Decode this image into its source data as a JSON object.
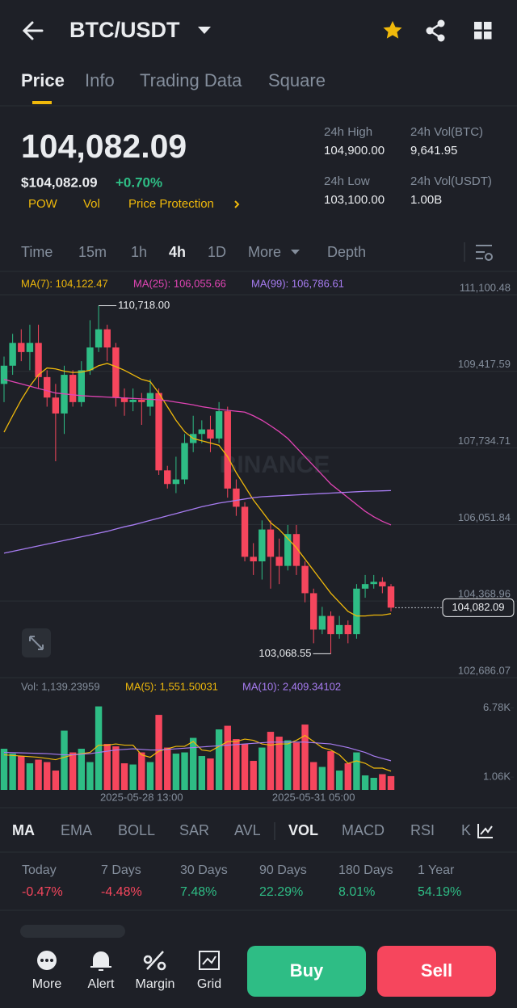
{
  "header": {
    "title": "BTC/USDT"
  },
  "tabs": {
    "items": [
      "Price",
      "Info",
      "Trading Data",
      "Square"
    ],
    "active": 0
  },
  "ticker": {
    "price": "104,082.09",
    "price_usd": "$104,082.09",
    "change": "+0.70%",
    "tags": [
      "POW",
      "Vol",
      "Price Protection"
    ]
  },
  "stats": [
    {
      "label": "24h High",
      "value": "104,900.00"
    },
    {
      "label": "24h Vol(BTC)",
      "value": "9,641.95"
    },
    {
      "label": "24h Low",
      "value": "103,100.00"
    },
    {
      "label": "24h Vol(USDT)",
      "value": "1.00B"
    }
  ],
  "intervals": {
    "items": [
      "Time",
      "15m",
      "1h",
      "4h",
      "1D",
      "More",
      "Depth"
    ],
    "active": 3
  },
  "chart_data": [
    {
      "type": "candlestick",
      "up_color": "#2ebd85",
      "down_color": "#f6465d",
      "open": [
        109000,
        109400,
        109900,
        109700,
        109900,
        109150,
        108700,
        108350,
        109200,
        108600,
        109300,
        109800,
        110200,
        109800,
        108700,
        108600,
        108650,
        108500,
        108800,
        107100,
        106800,
        106900,
        107700,
        107900,
        108000,
        107800,
        108400,
        106700,
        106300,
        105200,
        105100,
        105800,
        105200,
        105000,
        105700,
        105000,
        104400,
        103600,
        103900,
        103500,
        103700,
        103500,
        104500,
        104600,
        104650,
        104550
      ],
      "high": [
        109600,
        110100,
        110200,
        110300,
        110300,
        109300,
        109000,
        109400,
        109300,
        109500,
        110400,
        110718,
        110300,
        109900,
        108900,
        108900,
        108800,
        109100,
        108900,
        107200,
        107400,
        107900,
        108300,
        108200,
        108300,
        108600,
        108500,
        106900,
        106400,
        105500,
        106000,
        106000,
        105600,
        105900,
        105900,
        105100,
        104500,
        104100,
        104000,
        103900,
        103800,
        104600,
        104800,
        104800,
        104750,
        104600
      ],
      "low": [
        108600,
        109200,
        109500,
        109300,
        108900,
        108500,
        107300,
        107900,
        108500,
        108500,
        109200,
        109700,
        109500,
        108500,
        108300,
        108400,
        108100,
        108300,
        107000,
        106700,
        106600,
        106800,
        107500,
        107700,
        107500,
        107700,
        106500,
        106100,
        105100,
        104800,
        104700,
        104500,
        104600,
        104900,
        104800,
        104200,
        103300,
        103500,
        103068.55,
        103400,
        103300,
        103400,
        104300,
        104500,
        104400,
        104000
      ],
      "close": [
        109400,
        109900,
        109700,
        109900,
        109150,
        108700,
        108350,
        109200,
        108600,
        109300,
        109800,
        110200,
        109800,
        108700,
        108600,
        108650,
        108600,
        108800,
        107100,
        106800,
        106900,
        107700,
        107900,
        108000,
        107800,
        108400,
        106700,
        106300,
        105200,
        105100,
        105800,
        105200,
        105000,
        105700,
        105000,
        104400,
        103600,
        103900,
        103500,
        103700,
        103500,
        104500,
        104600,
        104650,
        104550,
        104082.09
      ],
      "ylim": [
        102526,
        111402
      ],
      "yticks": [
        {
          "value": 111100.48,
          "label": "111,100.48"
        },
        {
          "value": 109417.59,
          "label": "109,417.59"
        },
        {
          "value": 107734.71,
          "label": "107,734.71"
        },
        {
          "value": 106051.84,
          "label": "106,051.84"
        },
        {
          "value": 104368.96,
          "label": "104,368.96"
        },
        {
          "value": 102686.07,
          "label": "102,686.07"
        }
      ],
      "grid": true,
      "series": [
        {
          "name": "MA(7): 104,122.47",
          "color": "#f0b90b",
          "values": [
            107940,
            108300,
            108650,
            108950,
            109200,
            109350,
            109330,
            109280,
            109250,
            109260,
            109300,
            109400,
            109450,
            109380,
            109300,
            109200,
            109100,
            109050,
            108800,
            108500,
            108200,
            107950,
            107800,
            107750,
            107700,
            107650,
            107400,
            107050,
            106750,
            106450,
            106200,
            105950,
            105800,
            105600,
            105400,
            105150,
            104900,
            104650,
            104400,
            104200,
            104000,
            103900,
            103900,
            103920,
            103920,
            103950
          ]
        },
        {
          "name": "MA(25): 106,055.66",
          "color": "#e044b4",
          "values": [
            109100,
            109050,
            109000,
            108950,
            108900,
            108850,
            108800,
            108780,
            108760,
            108740,
            108730,
            108720,
            108710,
            108700,
            108690,
            108680,
            108670,
            108660,
            108650,
            108630,
            108600,
            108570,
            108540,
            108500,
            108470,
            108440,
            108420,
            108400,
            108380,
            108300,
            108200,
            108080,
            107950,
            107800,
            107600,
            107400,
            107200,
            107000,
            106800,
            106650,
            106500,
            106350,
            106200,
            106080,
            105980,
            105900
          ]
        },
        {
          "name": "MA(99): 106,786.61",
          "color": "#a77cf1",
          "values": [
            105280,
            105320,
            105360,
            105400,
            105440,
            105480,
            105520,
            105560,
            105600,
            105640,
            105680,
            105720,
            105760,
            105810,
            105860,
            105900,
            105950,
            106000,
            106050,
            106100,
            106150,
            106200,
            106250,
            106300,
            106340,
            106380,
            106410,
            106440,
            106470,
            106500,
            106520,
            106530,
            106540,
            106550,
            106560,
            106570,
            106580,
            106590,
            106600,
            106610,
            106620,
            106630,
            106640,
            106645,
            106650,
            106655
          ]
        }
      ],
      "annotations": [
        {
          "value": 110718,
          "label": "110,718.00"
        },
        {
          "value": 103068.55,
          "label": "103,068.55"
        }
      ],
      "last_price": {
        "value": 104082.09,
        "label": "104,082.09"
      },
      "watermark": "BINANCE"
    },
    {
      "type": "bar",
      "label": "Vol: 1,139.23959",
      "x": [
        null,
        null,
        null,
        null,
        null,
        null,
        null,
        null,
        null,
        null,
        null,
        null,
        null,
        null,
        null,
        null,
        "2025-05-28 13:00",
        null,
        null,
        null,
        null,
        null,
        null,
        null,
        null,
        null,
        null,
        null,
        null,
        null,
        null,
        null,
        null,
        null,
        null,
        null,
        "2025-05-31 05:00",
        null,
        null,
        null,
        null,
        null,
        null,
        null,
        null,
        null
      ],
      "values": [
        3400,
        3000,
        2800,
        2200,
        2500,
        2300,
        1600,
        4900,
        3100,
        3400,
        2300,
        6900,
        3800,
        3600,
        2200,
        2100,
        3100,
        2300,
        6200,
        3500,
        3000,
        3100,
        4300,
        2800,
        2600,
        5000,
        5300,
        4200,
        3800,
        2400,
        3500,
        4800,
        4400,
        4100,
        3900,
        5400,
        2300,
        1900,
        3200,
        1600,
        2200,
        3100,
        1200,
        1000,
        1300,
        1139.23959
      ],
      "ylim": [
        0,
        7540
      ],
      "yticks": [
        {
          "value": 6780,
          "label": "6.78K"
        },
        {
          "value": 1060,
          "label": "1.06K"
        }
      ],
      "series": [
        {
          "name": "MA(5): 1,551.50031",
          "color": "#f0b90b",
          "values": [
            2900,
            2850,
            2800,
            2750,
            2700,
            2600,
            2500,
            2700,
            2900,
            3000,
            3100,
            3700,
            3700,
            3800,
            3700,
            3700,
            2900,
            2700,
            3200,
            3400,
            3600,
            3600,
            4000,
            3300,
            3200,
            3600,
            4000,
            4000,
            4200,
            4100,
            3800,
            3700,
            3800,
            3800,
            4100,
            4500,
            4000,
            3500,
            3300,
            2900,
            2200,
            2400,
            2200,
            1800,
            1800,
            1551.50031
          ]
        },
        {
          "name": "MA(10): 2,409.34102",
          "color": "#a77cf1",
          "values": [
            3100,
            3080,
            3060,
            3040,
            3020,
            3000,
            2950,
            2900,
            2900,
            2950,
            3000,
            3100,
            3200,
            3300,
            3350,
            3400,
            3350,
            3300,
            3300,
            3350,
            3400,
            3450,
            3500,
            3550,
            3600,
            3650,
            3700,
            3750,
            3800,
            3850,
            3900,
            3950,
            3950,
            3950,
            3950,
            3950,
            3900,
            3850,
            3800,
            3650,
            3500,
            3300,
            3100,
            2800,
            2600,
            2409.34102
          ]
        }
      ]
    }
  ],
  "indicators": {
    "items": [
      "MA",
      "EMA",
      "BOLL",
      "SAR",
      "AVL",
      "VOL",
      "MACD",
      "RSI",
      "K"
    ],
    "active": [
      0,
      5
    ]
  },
  "performance": [
    {
      "label": "Today",
      "value": "-0.47%"
    },
    {
      "label": "7 Days",
      "value": "-4.48%"
    },
    {
      "label": "30 Days",
      "value": "7.48%"
    },
    {
      "label": "90 Days",
      "value": "22.29%"
    },
    {
      "label": "180 Days",
      "value": "8.01%"
    },
    {
      "label": "1 Year",
      "value": "54.19%"
    }
  ],
  "nav": {
    "items": [
      "More",
      "Alert",
      "Margin",
      "Grid"
    ],
    "buy": "Buy",
    "sell": "Sell"
  }
}
